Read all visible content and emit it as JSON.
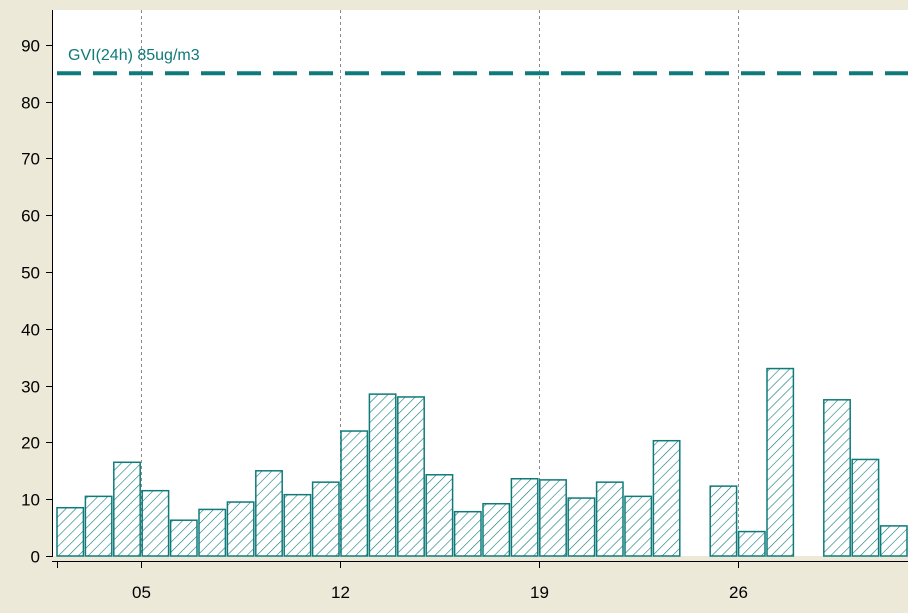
{
  "chart_data": {
    "type": "bar",
    "ylim": [
      0,
      95
    ],
    "yticks": [
      0,
      10,
      20,
      30,
      40,
      50,
      60,
      70,
      80,
      90
    ],
    "ytick_labels": [
      "0",
      "10",
      "20",
      "30",
      "40",
      "50",
      "60",
      "70",
      "80",
      "90"
    ],
    "x": [
      2,
      3,
      4,
      5,
      6,
      7,
      8,
      9,
      10,
      11,
      12,
      13,
      14,
      15,
      16,
      17,
      18,
      19,
      20,
      21,
      22,
      23,
      24,
      25,
      26,
      27,
      28,
      29,
      30
    ],
    "values": [
      8.5,
      10.5,
      16.5,
      11.5,
      6.3,
      8.2,
      9.5,
      15,
      10.8,
      13,
      22,
      28.5,
      28,
      14.3,
      7.8,
      9.2,
      13.6,
      13.4,
      10.2,
      13,
      10.5,
      20.3,
      null,
      12.3,
      4.3,
      33,
      null,
      27.5,
      17
    ],
    "x_extra": [
      31
    ],
    "values_extra": [
      5.3
    ],
    "xticks": [
      5,
      12,
      19,
      26
    ],
    "xtick_labels": [
      "05",
      "12",
      "19",
      "26"
    ],
    "grid": "vertical dashed at x ticks",
    "reference_line": {
      "label": "GVI(24h) 85ug/m3",
      "value": 85
    },
    "colors": {
      "bar_stroke": "#0f7a7a",
      "bar_fill": "#ffffff",
      "reference": "#0f7a7a",
      "background": "#ece9d8",
      "plot_background": "#ffffff"
    }
  }
}
